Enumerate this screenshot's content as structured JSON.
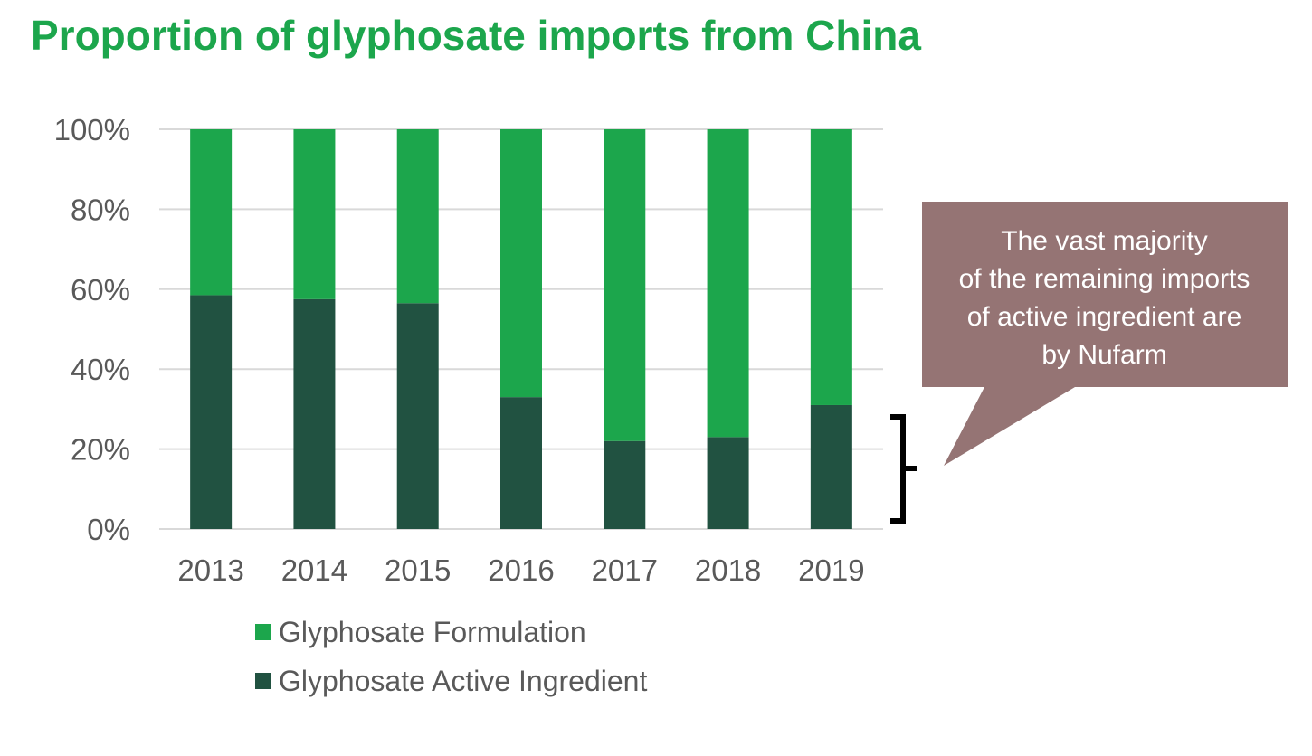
{
  "title": "Proportion of glyphosate imports from China",
  "colors": {
    "formulation": "#1ca64c",
    "active_ingredient": "#215241",
    "callout": "#957474",
    "grid": "#d9d9d9",
    "text": "#595959",
    "title": "#1ca64c"
  },
  "chart_data": {
    "type": "bar",
    "stacked": true,
    "categories": [
      "2013",
      "2014",
      "2015",
      "2016",
      "2017",
      "2018",
      "2019"
    ],
    "series": [
      {
        "name": "Glyphosate Active Ingredient",
        "values": [
          58.5,
          57.5,
          56.5,
          33,
          22,
          23,
          31
        ]
      },
      {
        "name": "Glyphosate Formulation",
        "values": [
          41.5,
          42.5,
          43.5,
          67,
          78,
          77,
          69
        ]
      }
    ],
    "ylim": [
      0,
      100
    ],
    "y_ticks": [
      "0%",
      "20%",
      "40%",
      "60%",
      "80%",
      "100%"
    ],
    "grid": true,
    "legend_position": "bottom",
    "legend": [
      "Glyphosate Formulation",
      "Glyphosate Active Ingredient"
    ],
    "title": "Proportion of glyphosate imports from China",
    "xlabel": "",
    "ylabel": ""
  },
  "callout": {
    "lines": [
      "The vast majority",
      "of the remaining imports",
      "of active ingredient are",
      "by Nufarm"
    ]
  }
}
